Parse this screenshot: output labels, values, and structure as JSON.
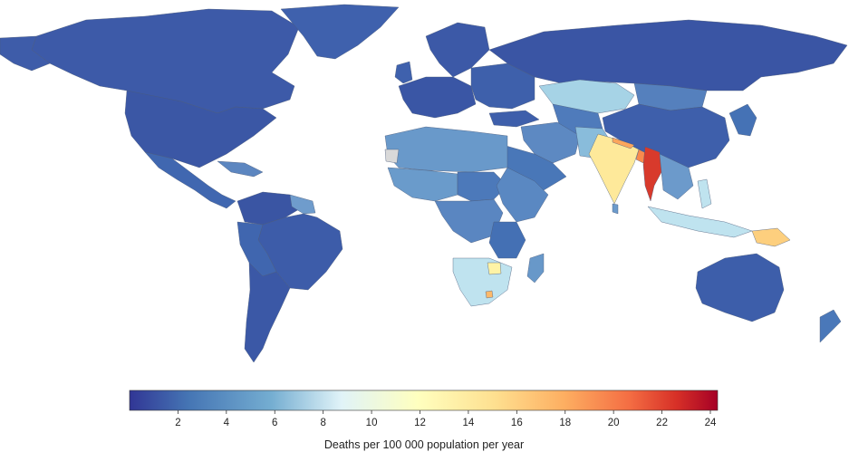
{
  "map": {
    "palette": {
      "low": "#313695",
      "mid_low": "#4575b4",
      "mid": "#abd9e9",
      "neutral": "#ffffbf",
      "mid_high": "#fdae61",
      "high": "#d73027",
      "max": "#a50026",
      "no_data": "#d9d9d9"
    }
  },
  "legend": {
    "title": "Deaths per 100 000 population per year",
    "ticks": [
      "2",
      "4",
      "6",
      "8",
      "10",
      "12",
      "14",
      "16",
      "18",
      "20",
      "22",
      "24"
    ],
    "min": 0,
    "max": 24.3
  }
}
